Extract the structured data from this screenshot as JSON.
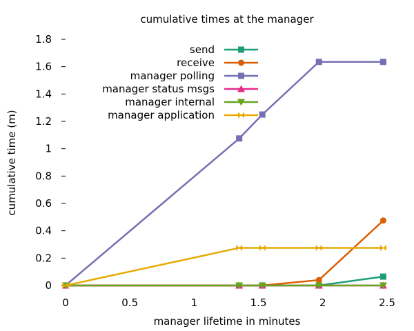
{
  "chart_data": {
    "type": "line",
    "title": "cumulative times at the manager",
    "xlabel": "manager lifetime in minutes",
    "ylabel": "cumulative time (m)",
    "xlim": [
      0,
      2.5
    ],
    "ylim": [
      0,
      1.8
    ],
    "xticks": [
      0,
      0.5,
      1,
      1.5,
      2,
      2.5
    ],
    "xtick_labels": [
      "0",
      "0.5",
      "1",
      "1.5",
      "2",
      "2.5"
    ],
    "yticks": [
      0,
      0.2,
      0.4,
      0.6,
      0.8,
      1,
      1.2,
      1.4,
      1.6,
      1.8
    ],
    "ytick_labels": [
      "0",
      "0.2",
      "0.4",
      "0.6",
      "0.8",
      "1",
      "1.2",
      "1.4",
      "1.6",
      "1.8"
    ],
    "grid": false,
    "legend_position": "top-center",
    "series": [
      {
        "name": "send",
        "color": "#1b9e77",
        "marker": "square",
        "x": [
          0,
          1.35,
          1.53,
          1.97,
          2.47
        ],
        "y": [
          0,
          0,
          0,
          0,
          0.065
        ]
      },
      {
        "name": "receive",
        "color": "#d95f02",
        "marker": "circle",
        "x": [
          0,
          1.35,
          1.53,
          1.97,
          2.47
        ],
        "y": [
          0,
          0,
          0,
          0.04,
          0.475
        ]
      },
      {
        "name": "manager polling",
        "color": "#7570b3",
        "marker": "square",
        "x": [
          0,
          1.35,
          1.53,
          1.97,
          2.47
        ],
        "y": [
          0,
          1.075,
          1.25,
          1.635,
          1.635
        ]
      },
      {
        "name": "manager status msgs",
        "color": "#e7298a",
        "marker": "triangle-up",
        "x": [
          0,
          1.35,
          1.53,
          1.97,
          2.47
        ],
        "y": [
          0,
          0,
          0,
          0,
          0
        ]
      },
      {
        "name": "manager internal",
        "color": "#66a61e",
        "marker": "triangle-down",
        "x": [
          0,
          1.35,
          1.53,
          1.97,
          2.47
        ],
        "y": [
          0,
          0,
          0,
          0,
          0
        ]
      },
      {
        "name": "manager application",
        "color": "#e6ab02",
        "marker": "bowtie",
        "x": [
          0,
          1.35,
          1.53,
          1.97,
          2.47
        ],
        "y": [
          0,
          0.275,
          0.275,
          0.275,
          0.275
        ]
      }
    ]
  }
}
